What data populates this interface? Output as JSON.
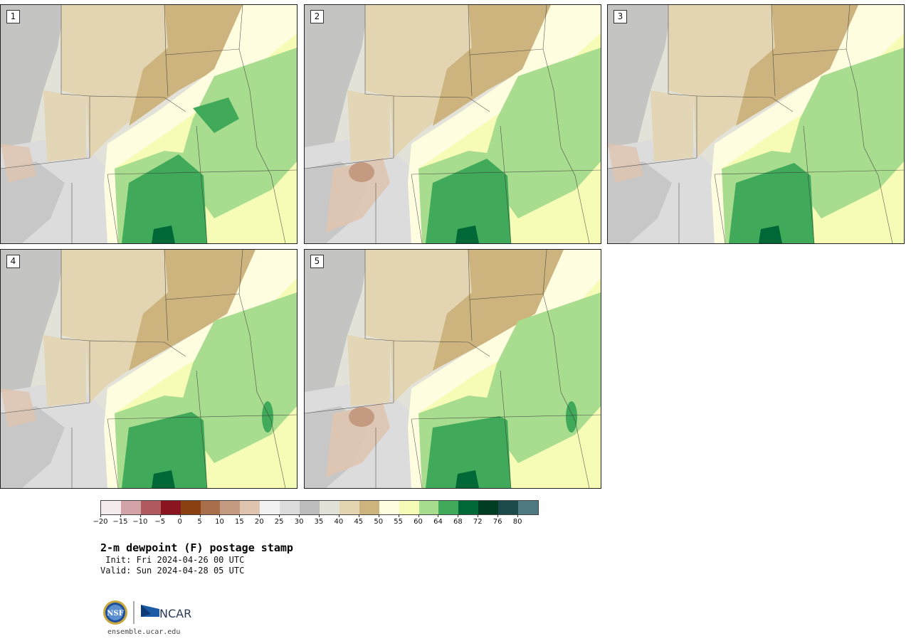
{
  "panels": [
    {
      "label": "1",
      "variant": 0
    },
    {
      "label": "2",
      "variant": 1
    },
    {
      "label": "3",
      "variant": 2
    },
    {
      "label": "4",
      "variant": 3
    },
    {
      "label": "5",
      "variant": 4
    }
  ],
  "colorbar": {
    "colors": [
      "#f4ecec",
      "#d4a3a8",
      "#b05a60",
      "#8a1520",
      "#8a4010",
      "#a86f4a",
      "#c49a80",
      "#dfc4b0",
      "#f2f2f2",
      "#dcdcdc",
      "#bdbdbd",
      "#e2e2d8",
      "#e3d5b2",
      "#cdb47e",
      "#fffde0",
      "#f6fbb5",
      "#a8dc8e",
      "#41aa5a",
      "#006837",
      "#003d22",
      "#1a4a4a",
      "#4f7a82"
    ],
    "tick_labels": [
      "−20",
      "−15",
      "−10",
      "−5",
      "0",
      "5",
      "10",
      "15",
      "20",
      "25",
      "30",
      "35",
      "40",
      "45",
      "50",
      "55",
      "60",
      "64",
      "68",
      "72",
      "76",
      "80"
    ]
  },
  "title": "2-m dewpoint (F) postage stamp",
  "init": " Init: Fri 2024-04-26 00 UTC",
  "valid": "Valid: Sun 2024-04-28 05 UTC",
  "logos": {
    "nsf_text": "NSF",
    "ncar_text": "NCAR"
  },
  "url": "ensemble.ucar.edu"
}
